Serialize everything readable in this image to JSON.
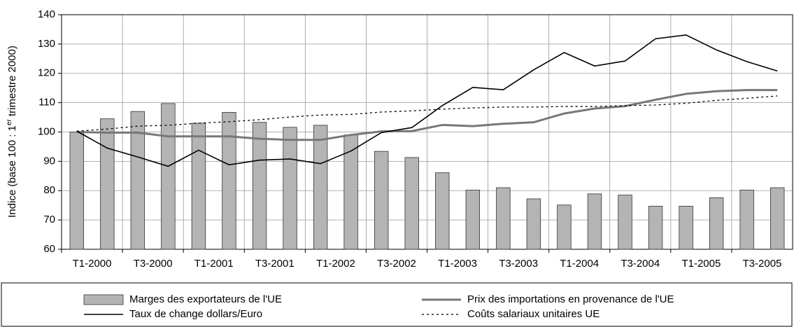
{
  "chart_data": {
    "type": "bar",
    "y_label_parts": [
      "Indice (base 100 : 1",
      "er",
      " trimestre 2000)"
    ],
    "categories": [
      "T1-2000",
      null,
      "T3-2000",
      null,
      "T1-2001",
      null,
      "T3-2001",
      null,
      "T1-2002",
      null,
      "T3-2002",
      null,
      "T1-2003",
      null,
      "T3-2003",
      null,
      "T1-2004",
      null,
      "T3-2004",
      null,
      "T1-2005",
      null,
      "T3-2005",
      null
    ],
    "ylim": [
      60,
      140
    ],
    "yticks": [
      60,
      70,
      80,
      90,
      100,
      110,
      120,
      130,
      140
    ],
    "grid": true,
    "legend": "bottom",
    "series": [
      {
        "name": "Marges des exportateurs de l'UE",
        "kind": "bar",
        "color": "#b4b4b4",
        "values": [
          100,
          104.5,
          107,
          109.7,
          103,
          106.7,
          103.3,
          101.6,
          102.3,
          99,
          93.4,
          91.3,
          86.1,
          80.2,
          81,
          77.2,
          75.1,
          78.9,
          78.5,
          74.7,
          74.7,
          77.6,
          80.2,
          81
        ]
      },
      {
        "name": "Prix des importations en provenance de l'UE",
        "kind": "line",
        "color": "#777777",
        "width": 3,
        "values": [
          100,
          99.8,
          99.8,
          98.5,
          98.5,
          98.5,
          97.7,
          97.3,
          97.3,
          99,
          100.2,
          100.3,
          102.4,
          102,
          102.8,
          103.3,
          106.3,
          108,
          108.8,
          111,
          113,
          113.9,
          114.3,
          114.3
        ]
      },
      {
        "name": "Taux de change dollars/Euro",
        "kind": "line",
        "color": "#000000",
        "width": 1.6,
        "values": [
          100.3,
          94.5,
          91.5,
          88.3,
          93.8,
          88.8,
          90.4,
          90.8,
          89.2,
          93.5,
          99.8,
          101.5,
          109,
          115.2,
          114.4,
          121.2,
          127.1,
          122.5,
          124.2,
          131.8,
          133.1,
          128,
          124,
          120.8
        ]
      },
      {
        "name": "Coûts salariaux unitaires UE",
        "kind": "line",
        "color": "#000000",
        "width": 1.3,
        "dash": true,
        "values": [
          100.3,
          101,
          102,
          102.3,
          103,
          103.5,
          104.2,
          105.1,
          105.8,
          106,
          106.8,
          107.2,
          107.8,
          108.2,
          108.5,
          108.5,
          108.7,
          108.7,
          109,
          109.2,
          109.8,
          110.8,
          111.5,
          112.3
        ]
      }
    ]
  }
}
